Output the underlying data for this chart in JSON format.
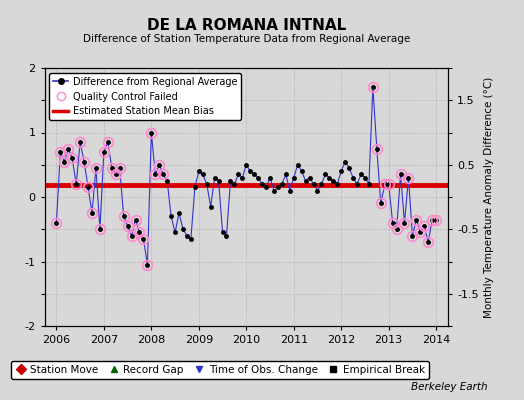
{
  "title": "DE LA ROMANA INTNAL",
  "subtitle": "Difference of Station Temperature Data from Regional Average",
  "ylabel": "Monthly Temperature Anomaly Difference (°C)",
  "xlabel_years": [
    2006,
    2007,
    2008,
    2009,
    2010,
    2011,
    2012,
    2013,
    2014
  ],
  "ylim": [
    -2,
    2
  ],
  "bias_line": 0.18,
  "background_color": "#d8d8d8",
  "plot_background": "#d8d8d8",
  "line_color": "#3333cc",
  "bias_color": "#dd0000",
  "qc_color": "#ff88cc",
  "time_series": {
    "dates": [
      2006.0,
      2006.083,
      2006.167,
      2006.25,
      2006.333,
      2006.417,
      2006.5,
      2006.583,
      2006.667,
      2006.75,
      2006.833,
      2006.917,
      2007.0,
      2007.083,
      2007.167,
      2007.25,
      2007.333,
      2007.417,
      2007.5,
      2007.583,
      2007.667,
      2007.75,
      2007.833,
      2007.917,
      2008.0,
      2008.083,
      2008.167,
      2008.25,
      2008.333,
      2008.417,
      2008.5,
      2008.583,
      2008.667,
      2008.75,
      2008.833,
      2008.917,
      2009.0,
      2009.083,
      2009.167,
      2009.25,
      2009.333,
      2009.417,
      2009.5,
      2009.583,
      2009.667,
      2009.75,
      2009.833,
      2009.917,
      2010.0,
      2010.083,
      2010.167,
      2010.25,
      2010.333,
      2010.417,
      2010.5,
      2010.583,
      2010.667,
      2010.75,
      2010.833,
      2010.917,
      2011.0,
      2011.083,
      2011.167,
      2011.25,
      2011.333,
      2011.417,
      2011.5,
      2011.583,
      2011.667,
      2011.75,
      2011.833,
      2011.917,
      2012.0,
      2012.083,
      2012.167,
      2012.25,
      2012.333,
      2012.417,
      2012.5,
      2012.583,
      2012.667,
      2012.75,
      2012.833,
      2012.917,
      2013.0,
      2013.083,
      2013.167,
      2013.25,
      2013.333,
      2013.417,
      2013.5,
      2013.583,
      2013.667,
      2013.75,
      2013.833,
      2013.917,
      2014.0
    ],
    "values": [
      -0.4,
      0.7,
      0.55,
      0.75,
      0.6,
      0.2,
      0.85,
      0.55,
      0.15,
      -0.25,
      0.45,
      -0.5,
      0.7,
      0.85,
      0.45,
      0.35,
      0.45,
      -0.3,
      -0.45,
      -0.6,
      -0.35,
      -0.55,
      -0.65,
      -1.05,
      1.0,
      0.35,
      0.5,
      0.35,
      0.25,
      -0.3,
      -0.55,
      -0.25,
      -0.5,
      -0.6,
      -0.65,
      0.15,
      0.4,
      0.35,
      0.2,
      -0.15,
      0.3,
      0.25,
      -0.55,
      -0.6,
      0.25,
      0.2,
      0.35,
      0.3,
      0.5,
      0.4,
      0.35,
      0.3,
      0.2,
      0.15,
      0.3,
      0.1,
      0.15,
      0.2,
      0.35,
      0.1,
      0.3,
      0.5,
      0.4,
      0.25,
      0.3,
      0.2,
      0.1,
      0.2,
      0.35,
      0.3,
      0.25,
      0.2,
      0.4,
      0.55,
      0.45,
      0.3,
      0.2,
      0.35,
      0.3,
      0.2,
      1.7,
      0.75,
      -0.1,
      0.2,
      0.2,
      -0.4,
      -0.5,
      0.35,
      -0.4,
      0.3,
      -0.6,
      -0.35,
      -0.55,
      -0.45,
      -0.7,
      -0.35,
      -0.35
    ],
    "qc_failed_indices": [
      0,
      1,
      2,
      3,
      4,
      5,
      6,
      7,
      8,
      9,
      10,
      11,
      12,
      13,
      14,
      15,
      16,
      17,
      18,
      19,
      20,
      21,
      22,
      23,
      24,
      25,
      26,
      27,
      80,
      81,
      82,
      83,
      84,
      85,
      86,
      87,
      88,
      89,
      90,
      91,
      92,
      93,
      94,
      95,
      96
    ]
  },
  "watermark": "Berkeley Earth"
}
